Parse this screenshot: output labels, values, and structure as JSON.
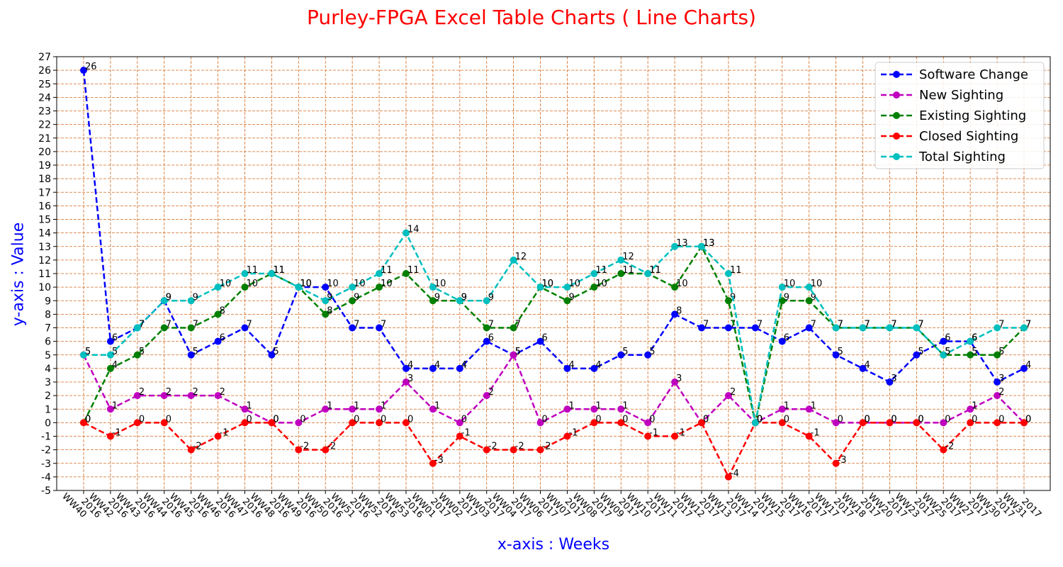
{
  "chart_data": {
    "type": "line",
    "title": "Purley-FPGA Excel Table Charts ( Line Charts)",
    "xlabel": "x-axis : Weeks",
    "ylabel": "y-axis : Value",
    "ylim": [
      -5,
      27
    ],
    "grid": true,
    "legend_position": "top-right",
    "categories": [
      "2016 WW40",
      "2016 WW42",
      "2016 WW43",
      "2016 WW44",
      "2016 WW45",
      "2016 WW46",
      "2016 WW47",
      "2016 WW48",
      "2016 WW49",
      "2016 WW50",
      "2016 WW51",
      "2016 WW52",
      "2016 WW53",
      "2017 WW01",
      "2017 WW02",
      "2017 WW03",
      "2017 WW04",
      "2017 WW06",
      "2017 WW07",
      "2017 WW08",
      "2017 WW09",
      "2017 WW10",
      "2017 WW11",
      "2017 WW12",
      "2017 WW13",
      "2017 WW14",
      "2017 WW15",
      "2017 WW16",
      "2017 WW17",
      "2017 WW18",
      "2017 WW20",
      "2017 WW23",
      "2017 WW25",
      "2017 WW27",
      "2017 WW30",
      "2017 WW31"
    ],
    "series": [
      {
        "name": "Software Change",
        "color": "#0000ff",
        "values": [
          26,
          6,
          7,
          9,
          5,
          6,
          7,
          5,
          10,
          10,
          7,
          7,
          4,
          4,
          4,
          6,
          5,
          6,
          4,
          4,
          5,
          5,
          8,
          7,
          7,
          7,
          6,
          7,
          5,
          4,
          3,
          5,
          6,
          6,
          3,
          4
        ]
      },
      {
        "name": "New Sighting",
        "color": "#bf00bf",
        "values": [
          5,
          1,
          2,
          2,
          2,
          2,
          1,
          0,
          0,
          1,
          1,
          1,
          3,
          1,
          0,
          2,
          5,
          0,
          1,
          1,
          1,
          0,
          3,
          0,
          2,
          0,
          1,
          1,
          0,
          0,
          0,
          0,
          0,
          1,
          2,
          0
        ]
      },
      {
        "name": "Existing Sighting",
        "color": "#008000",
        "values": [
          0,
          4,
          5,
          7,
          7,
          8,
          10,
          11,
          10,
          8,
          9,
          10,
          11,
          9,
          9,
          7,
          7,
          10,
          9,
          10,
          11,
          11,
          10,
          13,
          9,
          0,
          9,
          9,
          7,
          7,
          7,
          7,
          5,
          5,
          5,
          7
        ]
      },
      {
        "name": "Closed Sighting",
        "color": "#ff0000",
        "values": [
          0,
          -1,
          0,
          0,
          -2,
          -1,
          0,
          0,
          -2,
          -2,
          0,
          0,
          0,
          -3,
          -1,
          -2,
          -2,
          -2,
          -1,
          0,
          0,
          -1,
          -1,
          0,
          -4,
          0,
          0,
          -1,
          -3,
          0,
          0,
          0,
          -2,
          0,
          0,
          0
        ]
      },
      {
        "name": "Total Sighting",
        "color": "#00bfbf",
        "values": [
          5,
          5,
          7,
          9,
          9,
          10,
          11,
          11,
          10,
          9,
          10,
          11,
          14,
          10,
          9,
          9,
          12,
          10,
          10,
          11,
          12,
          11,
          13,
          13,
          11,
          0,
          10,
          10,
          7,
          7,
          7,
          7,
          5,
          6,
          7,
          7
        ]
      }
    ]
  }
}
